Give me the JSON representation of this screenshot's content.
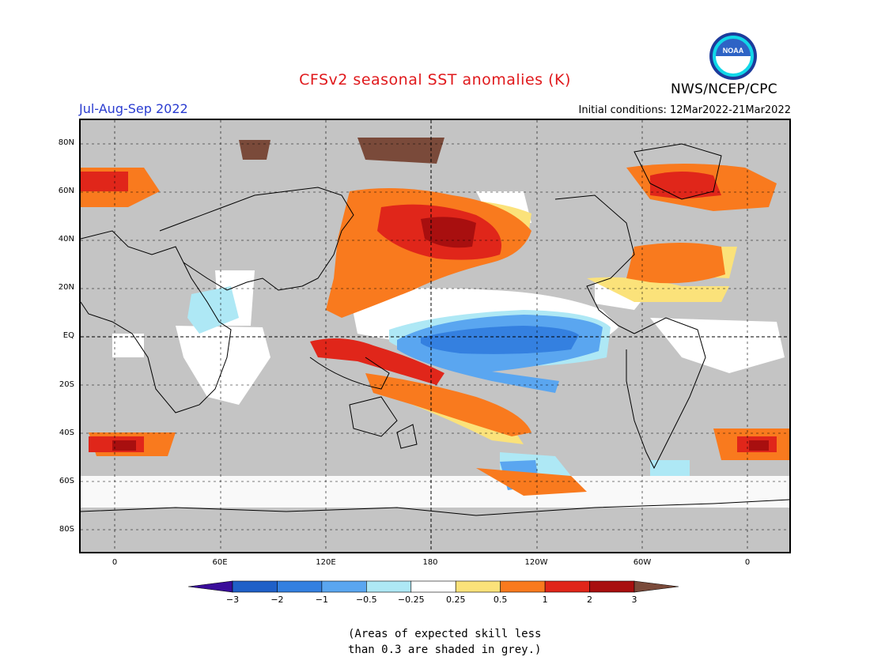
{
  "title": "CFSv2 seasonal SST anomalies (K)",
  "period": "Jul-Aug-Sep 2022",
  "initial_conditions": "Initial conditions: 12Mar2022-21Mar2022",
  "agency": "NWS/NCEP/CPC",
  "logo_text": "NOAA",
  "lat_labels": [
    "80N",
    "60N",
    "40N",
    "20N",
    "EQ",
    "20S",
    "40S",
    "60S",
    "80S"
  ],
  "lon_labels": [
    "0",
    "60E",
    "120E",
    "180",
    "120W",
    "60W",
    "0"
  ],
  "colorbar": {
    "tick_labels": [
      "−3",
      "−2",
      "−1",
      "−0.5",
      "−0.25",
      "0.25",
      "0.5",
      "1",
      "2",
      "3"
    ],
    "colors": [
      "#3a0d9a",
      "#1f60c8",
      "#3480e0",
      "#5aa6f0",
      "#aee8f5",
      "#ffffff",
      "#fbe27a",
      "#f97a1e",
      "#e0261a",
      "#a80f0f",
      "#7a4a3a"
    ]
  },
  "note": "(Areas of expected skill less\nthan 0.3 are shaded in grey.)",
  "map_colors": {
    "ocean_grey": "#c4c4c4",
    "land": "#c4c4c4",
    "coast": "#000000"
  }
}
